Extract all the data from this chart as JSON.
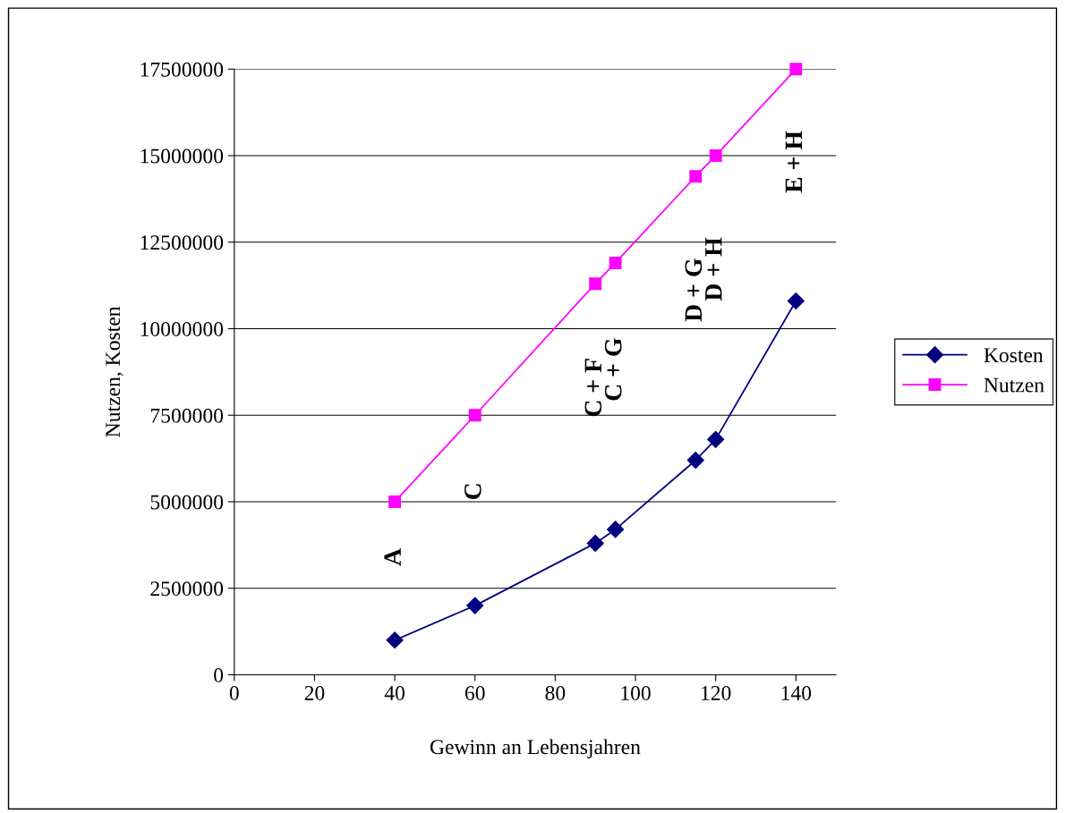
{
  "chart_data": {
    "type": "line",
    "xlabel": "Gewinn an Lebensjahren",
    "ylabel": "Nutzen, Kosten",
    "xlim": [
      0,
      150
    ],
    "xticks": [
      0,
      20,
      40,
      60,
      80,
      100,
      120,
      140
    ],
    "ylim": [
      0,
      17500000
    ],
    "yticks": [
      0,
      2500000,
      5000000,
      7500000,
      10000000,
      12500000,
      15000000,
      17500000
    ],
    "grid": "y",
    "legend": "right",
    "series": [
      {
        "name": "Kosten",
        "color": "#000080",
        "marker": "diamond",
        "x": [
          40,
          60,
          90,
          95,
          115,
          120,
          140
        ],
        "values": [
          1000000,
          2000000,
          3800000,
          4200000,
          6200000,
          6800000,
          10800000
        ]
      },
      {
        "name": "Nutzen",
        "color": "#ff00ff",
        "marker": "square",
        "x": [
          40,
          60,
          90,
          95,
          115,
          120,
          140
        ],
        "values": [
          5000000,
          7500000,
          11300000,
          11900000,
          14400000,
          15000000,
          17500000
        ]
      }
    ],
    "annotations": [
      "A",
      "C",
      "C + F",
      "C + G",
      "D + G",
      "D + H",
      "E + H"
    ]
  }
}
